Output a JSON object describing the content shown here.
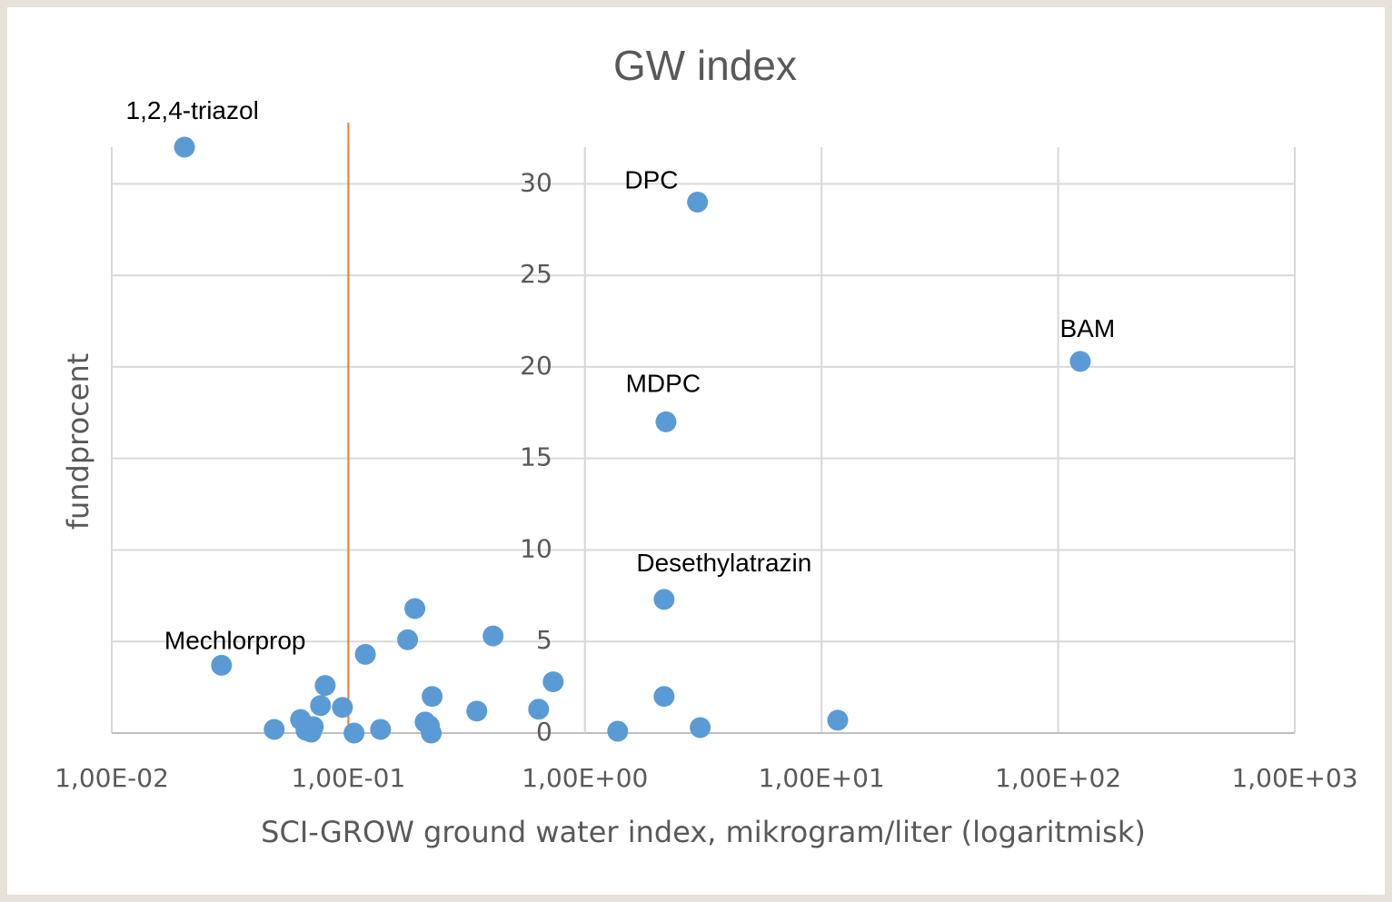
{
  "chart_data": {
    "type": "scatter",
    "title": "GW index",
    "xlabel": "SCI-GROW ground water index, mikrogram/liter (logaritmisk)",
    "ylabel": "fundprocent",
    "xscale": "log",
    "xlim": [
      0.01,
      1000
    ],
    "ylim": [
      0,
      32
    ],
    "xticks": [
      {
        "value": 0.01,
        "label": "1,00E-02"
      },
      {
        "value": 0.1,
        "label": "1,00E-01"
      },
      {
        "value": 1,
        "label": "1,00E+00"
      },
      {
        "value": 10,
        "label": "1,00E+01"
      },
      {
        "value": 100,
        "label": "1,00E+02"
      },
      {
        "value": 1000,
        "label": "1,00E+03"
      }
    ],
    "yticks": [
      0,
      5,
      10,
      15,
      20,
      25,
      30
    ],
    "y_axis_crosses_at": 1,
    "grid": true,
    "series": [
      {
        "color": "#5b9bd5",
        "x": [
          0.0203,
          2.99,
          124,
          2.2,
          2.16,
          0.0291,
          0.191,
          0.178,
          0.409,
          0.118,
          0.0798,
          0.734,
          0.226,
          2.16,
          0.0763,
          0.0944,
          0.349,
          0.637,
          11.7,
          0.0628,
          0.0711,
          0.0486,
          0.0662,
          0.0697,
          0.1057,
          0.1368,
          0.211,
          0.22,
          0.224,
          1.375,
          3.07
        ],
        "values": [
          32,
          29,
          20.3,
          17,
          7.3,
          3.7,
          6.8,
          5.1,
          5.3,
          4.3,
          2.6,
          2.8,
          2.0,
          2.0,
          1.5,
          1.4,
          1.2,
          1.3,
          0.7,
          0.74,
          0.35,
          0.2,
          0.15,
          0.05,
          0,
          0.2,
          0.6,
          0.4,
          0,
          0.1,
          0.3
        ]
      }
    ],
    "vline": {
      "x": 0.1,
      "color": "#ed7d31"
    },
    "annotations": [
      {
        "text": "1,2,4-triazol",
        "x": 0.0219,
        "y": 33.9
      },
      {
        "text": "DPC",
        "x": 1.91,
        "y": 30.1
      },
      {
        "text": "BAM",
        "x": 133,
        "y": 22.0
      },
      {
        "text": "MDPC",
        "x": 2.14,
        "y": 19.0
      },
      {
        "text": "Desethylatrazin",
        "x": 3.87,
        "y": 9.2
      },
      {
        "text": "Mechlorprop",
        "x": 0.0332,
        "y": 4.96
      }
    ]
  }
}
